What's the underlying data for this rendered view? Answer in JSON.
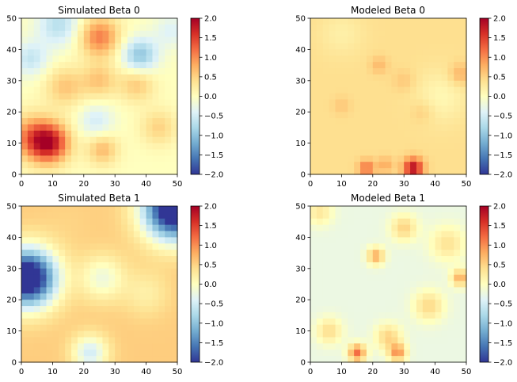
{
  "colormap": {
    "name": "RdYlBu_r",
    "stops": [
      "#313695",
      "#4575b4",
      "#74add1",
      "#abd9e9",
      "#e0f3f8",
      "#ffffbf",
      "#fee090",
      "#fdae61",
      "#f46d43",
      "#d73027",
      "#a50026"
    ]
  },
  "chart_data": [
    {
      "type": "heatmap",
      "title": "Simulated Beta 0",
      "xlim": [
        0,
        50
      ],
      "ylim": [
        0,
        50
      ],
      "xticks": [
        "0",
        "10",
        "20",
        "30",
        "40",
        "50"
      ],
      "yticks": [
        "0",
        "10",
        "20",
        "30",
        "40",
        "50"
      ],
      "colorbar": {
        "vmin": -2.0,
        "vmax": 2.0,
        "ticks": [
          "2.0",
          "1.5",
          "1.0",
          "0.5",
          "0.0",
          "−0.5",
          "−1.0",
          "−1.5",
          "−2.0"
        ]
      },
      "baseline": 0.0,
      "features": [
        {
          "x": 9,
          "y": 10,
          "value": 1.7,
          "radius": 4.5
        },
        {
          "x": 3,
          "y": 12,
          "value": 0.9,
          "radius": 5
        },
        {
          "x": 25,
          "y": 44,
          "value": 1.1,
          "radius": 4.5
        },
        {
          "x": 25,
          "y": 30,
          "value": 0.6,
          "radius": 4
        },
        {
          "x": 14,
          "y": 28,
          "value": 0.6,
          "radius": 4.5
        },
        {
          "x": 37,
          "y": 29,
          "value": 0.6,
          "radius": 4
        },
        {
          "x": 26,
          "y": 8,
          "value": 0.7,
          "radius": 3.5
        },
        {
          "x": 44,
          "y": 15,
          "value": 0.5,
          "radius": 4
        },
        {
          "x": 38,
          "y": 38,
          "value": -1.0,
          "radius": 4
        },
        {
          "x": 12,
          "y": 48,
          "value": -0.7,
          "radius": 5
        },
        {
          "x": 3,
          "y": 37,
          "value": -0.6,
          "radius": 4
        },
        {
          "x": 24,
          "y": 17,
          "value": -0.5,
          "radius": 4
        },
        {
          "x": 48,
          "y": 46,
          "value": -0.4,
          "radius": 4
        }
      ]
    },
    {
      "type": "heatmap",
      "title": "Modeled Beta 0",
      "xlim": [
        0,
        50
      ],
      "ylim": [
        0,
        50
      ],
      "xticks": [
        "0",
        "10",
        "20",
        "30",
        "40",
        "50"
      ],
      "yticks": [
        "0",
        "10",
        "20",
        "30",
        "40",
        "50"
      ],
      "colorbar": {
        "vmin": -2.0,
        "vmax": 2.0,
        "ticks": [
          "2.0",
          "1.5",
          "1.0",
          "0.5",
          "0.0",
          "−0.5",
          "−1.0",
          "−1.5",
          "−2.0"
        ]
      },
      "baseline": 0.4,
      "features": [
        {
          "x": 33,
          "y": 2,
          "value": 1.9,
          "radius": 2.2
        },
        {
          "x": 18,
          "y": 2,
          "value": 1.2,
          "radius": 1.8
        },
        {
          "x": 24,
          "y": 3,
          "value": 0.8,
          "radius": 1.8
        },
        {
          "x": 48,
          "y": 32,
          "value": 0.8,
          "radius": 2.5
        },
        {
          "x": 22,
          "y": 35,
          "value": 0.7,
          "radius": 2
        },
        {
          "x": 30,
          "y": 30,
          "value": 0.6,
          "radius": 2.5
        },
        {
          "x": 36,
          "y": 20,
          "value": 0.6,
          "radius": 2.5
        },
        {
          "x": 10,
          "y": 22,
          "value": 0.6,
          "radius": 2
        },
        {
          "x": 42,
          "y": 25,
          "value": 0.1,
          "radius": 6
        },
        {
          "x": 10,
          "y": 45,
          "value": 0.2,
          "radius": 5
        }
      ]
    },
    {
      "type": "heatmap",
      "title": "Simulated Beta 1",
      "xlim": [
        0,
        50
      ],
      "ylim": [
        0,
        50
      ],
      "xticks": [
        "0",
        "10",
        "20",
        "30",
        "40",
        "50"
      ],
      "yticks": [
        "0",
        "10",
        "20",
        "30",
        "40",
        "50"
      ],
      "colorbar": {
        "vmin": -2.0,
        "vmax": 2.0,
        "ticks": [
          "2.0",
          "1.5",
          "1.0",
          "0.5",
          "0.0",
          "−0.5",
          "−1.0",
          "−1.5",
          "−2.0"
        ]
      },
      "baseline": 0.55,
      "features": [
        {
          "x": 2,
          "y": 27,
          "value": -2.6,
          "radius": 6.5
        },
        {
          "x": 49,
          "y": 49,
          "value": -2.6,
          "radius": 7
        },
        {
          "x": 15,
          "y": 45,
          "value": 0.5,
          "radius": 6
        },
        {
          "x": 40,
          "y": 22,
          "value": 0.2,
          "radius": 5
        },
        {
          "x": 22,
          "y": 3,
          "value": -0.5,
          "radius": 4
        },
        {
          "x": 26,
          "y": 27,
          "value": -0.2,
          "radius": 5
        }
      ]
    },
    {
      "type": "heatmap",
      "title": "Modeled Beta 1",
      "xlim": [
        0,
        50
      ],
      "ylim": [
        0,
        50
      ],
      "xticks": [
        "0",
        "10",
        "20",
        "30",
        "40",
        "50"
      ],
      "yticks": [
        "0",
        "10",
        "20",
        "30",
        "40",
        "50"
      ],
      "colorbar": {
        "vmin": -2.0,
        "vmax": 2.0,
        "ticks": [
          "2.0",
          "1.5",
          "1.0",
          "0.5",
          "0.0",
          "−0.5",
          "−1.0",
          "−1.5",
          "−2.0"
        ]
      },
      "baseline": -0.25,
      "features": [
        {
          "x": 15,
          "y": 3,
          "value": 1.2,
          "radius": 2
        },
        {
          "x": 28,
          "y": 3,
          "value": 0.9,
          "radius": 2
        },
        {
          "x": 21,
          "y": 34,
          "value": 0.8,
          "radius": 2
        },
        {
          "x": 48,
          "y": 27,
          "value": 0.8,
          "radius": 2
        },
        {
          "x": 30,
          "y": 43,
          "value": 0.5,
          "radius": 3
        },
        {
          "x": 38,
          "y": 18,
          "value": 0.45,
          "radius": 3.5
        },
        {
          "x": 25,
          "y": 8,
          "value": 0.5,
          "radius": 3
        },
        {
          "x": 6,
          "y": 10,
          "value": 0.4,
          "radius": 3
        },
        {
          "x": 44,
          "y": 38,
          "value": 0.35,
          "radius": 4
        },
        {
          "x": 3,
          "y": 48,
          "value": 0.3,
          "radius": 3
        }
      ]
    }
  ]
}
